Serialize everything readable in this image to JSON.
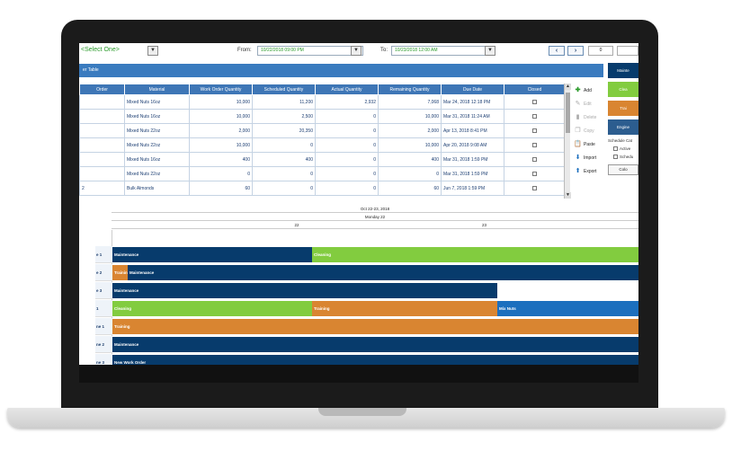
{
  "toolbar": {
    "select_one": "<Select One>",
    "from_label": "From:",
    "from_value": "10/22/2018 09:00 PM",
    "to_label": "To:",
    "to_value": "10/23/2018 12:00 AM",
    "prev_icon": "‹",
    "next_icon": "›",
    "num_value": "0"
  },
  "panel": {
    "title": "er Table"
  },
  "table": {
    "columns": [
      "Order",
      "Material",
      "Work Order Quantity",
      "Scheduled Quantity",
      "Actual Quantity",
      "Remaining Quantity",
      "Due Date",
      "Closed"
    ],
    "rows": [
      {
        "order": "",
        "material": "Mixed Nuts 16oz",
        "woq": "10,000",
        "sched": "11,200",
        "actual": "2,932",
        "remaining": "7,068",
        "due": "Mar 24, 2018 12:18 PM"
      },
      {
        "order": "",
        "material": "Mixed Nuts 16oz",
        "woq": "10,000",
        "sched": "2,500",
        "actual": "0",
        "remaining": "10,000",
        "due": "Mar 31, 2018 11:24 AM"
      },
      {
        "order": "",
        "material": "Mixed Nuts 22oz",
        "woq": "2,000",
        "sched": "20,350",
        "actual": "0",
        "remaining": "2,000",
        "due": "Apr 13, 2018 8:41 PM"
      },
      {
        "order": "",
        "material": "Mixed Nuts 22oz",
        "woq": "10,000",
        "sched": "0",
        "actual": "0",
        "remaining": "10,000",
        "due": "Apr 20, 2018 9:08 AM"
      },
      {
        "order": "",
        "material": "Mixed Nuts 16oz",
        "woq": "400",
        "sched": "400",
        "actual": "0",
        "remaining": "400",
        "due": "Mar 31, 2018 1:59 PM"
      },
      {
        "order": "",
        "material": "Mixed Nuts 22oz",
        "woq": "0",
        "sched": "0",
        "actual": "0",
        "remaining": "0",
        "due": "Mar 31, 2018 1:59 PM"
      },
      {
        "order": "2",
        "material": "Bulk Almonds",
        "woq": "60",
        "sched": "0",
        "actual": "0",
        "remaining": "60",
        "due": "Jun 7, 2018 1:59 PM"
      }
    ]
  },
  "actions": {
    "add": "Add",
    "edit": "Edit",
    "delete": "Delete",
    "copy": "Copy",
    "paste": "Paste",
    "import": "Import",
    "export": "Export"
  },
  "right_panel": {
    "maintenance": "Mainte",
    "cleaning": "Clea",
    "training": "Trai",
    "engineering": "Engine",
    "schedule_label": "Schedule Cat",
    "active": "Active",
    "schedule": "Schedu",
    "color": "Colo"
  },
  "gantt": {
    "date_range": "Oct 22-23, 2018",
    "day": "Monday 22",
    "hour_a": "22",
    "hour_b": "23",
    "rows": [
      {
        "label": "e 1",
        "bars": [
          {
            "text": "Maintenance"
          },
          {
            "text": "Cleaning"
          }
        ]
      },
      {
        "label": "e 2",
        "bars": [
          {
            "text": "Trainin"
          },
          {
            "text": "Maintenance"
          }
        ]
      },
      {
        "label": "e 3",
        "bars": [
          {
            "text": "Maintenance"
          }
        ]
      },
      {
        "label": "1",
        "bars": [
          {
            "text": "Cleaning"
          },
          {
            "text": "Training"
          },
          {
            "text": "Mix Nuts"
          }
        ]
      },
      {
        "label": "ne 1",
        "bars": [
          {
            "text": "Training"
          }
        ]
      },
      {
        "label": "ne 2",
        "bars": [
          {
            "text": "Maintenance"
          }
        ]
      },
      {
        "label": "ne 3",
        "bars": [
          {
            "text": "New Work Order"
          }
        ]
      }
    ]
  },
  "colors": {
    "maintenance": "#073b6c",
    "cleaning": "#82cc3f",
    "training": "#d98531",
    "mix_nuts": "#1b6fbe",
    "header_blue": "#3e76b6"
  }
}
